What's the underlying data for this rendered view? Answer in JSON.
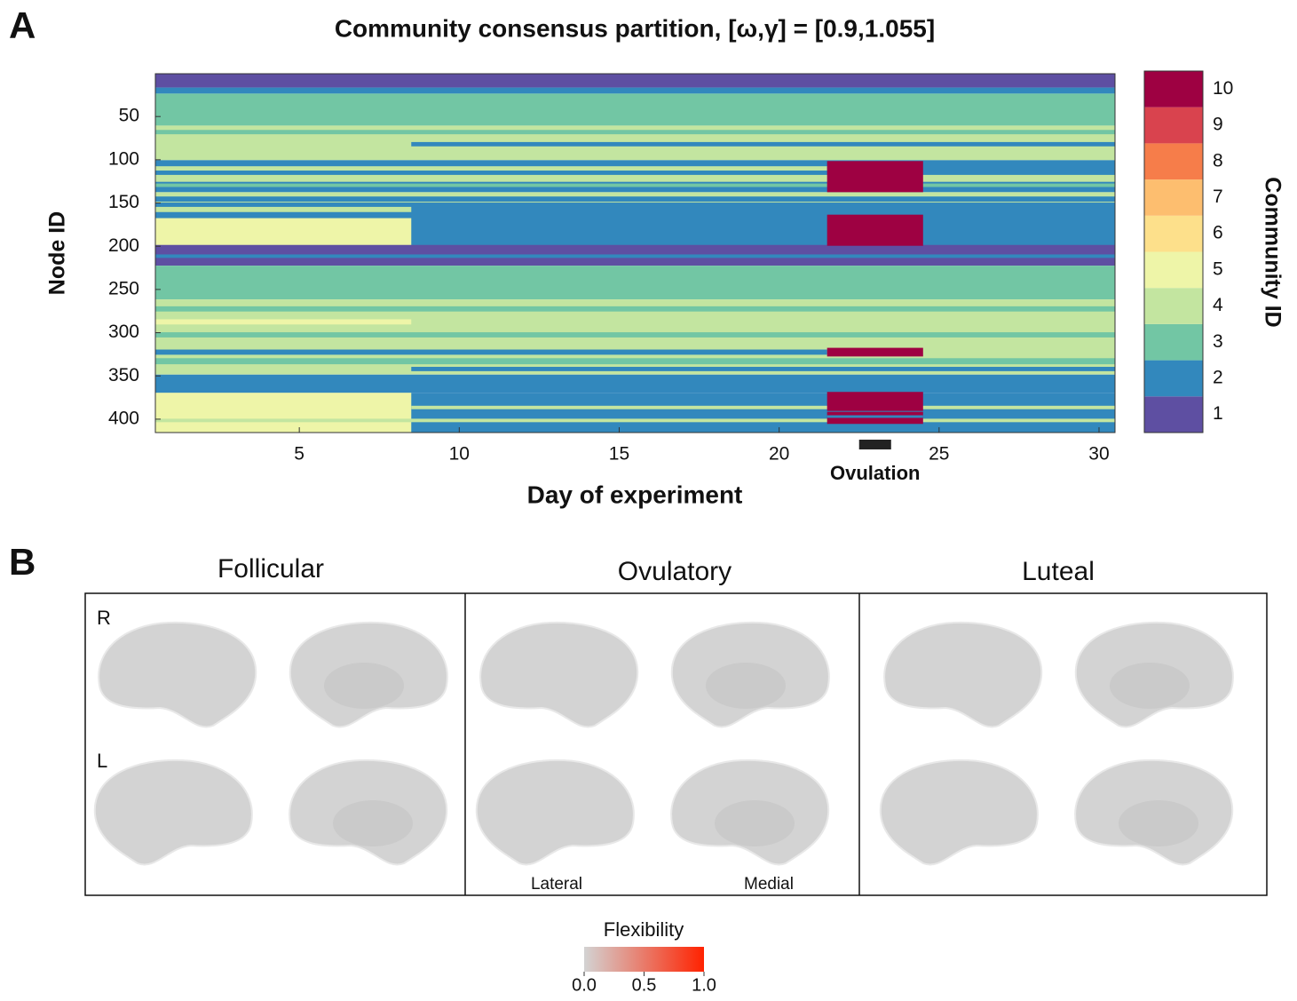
{
  "chart_data": {
    "type": "heatmap",
    "panel_label": "A",
    "title": "Community consensus partition, [ω,γ] = [0.9,1.055]",
    "x_label": "Day of experiment",
    "y_label": "Node ID",
    "xlim": [
      0.5,
      30.5
    ],
    "ylim": [
      0.5,
      415.5
    ],
    "y_reversed": true,
    "xticks": [
      5,
      10,
      15,
      20,
      25,
      30
    ],
    "yticks": [
      50,
      100,
      150,
      200,
      250,
      300,
      350,
      400
    ],
    "colorbar": {
      "title": "Community ID",
      "categories": [
        1,
        2,
        3,
        4,
        5,
        6,
        7,
        8,
        9,
        10
      ],
      "colors": [
        "#5e4fa2",
        "#3288bd",
        "#72c6a4",
        "#c3e5a0",
        "#eef5a8",
        "#fde08b",
        "#fdbe6f",
        "#f67d4a",
        "#d9434e",
        "#9e0142"
      ]
    },
    "cells": [
      {
        "nodes": [
          1,
          16
        ],
        "days": [
          1,
          30
        ],
        "community": 1
      },
      {
        "nodes": [
          17,
          23
        ],
        "days": [
          1,
          30
        ],
        "community": 2
      },
      {
        "nodes": [
          24,
          60
        ],
        "days": [
          1,
          30
        ],
        "community": 3
      },
      {
        "nodes": [
          61,
          100
        ],
        "days": [
          1,
          30
        ],
        "community": 4
      },
      {
        "nodes": [
          66,
          70
        ],
        "days": [
          1,
          30
        ],
        "community": 3
      },
      {
        "nodes": [
          80,
          84
        ],
        "days": [
          9,
          30
        ],
        "community": 2
      },
      {
        "nodes": [
          101,
          137
        ],
        "days": [
          1,
          30
        ],
        "community": 2
      },
      {
        "nodes": [
          108,
          112
        ],
        "days": [
          1,
          21
        ],
        "community": 4
      },
      {
        "nodes": [
          118,
          125
        ],
        "days": [
          1,
          30
        ],
        "community": 4
      },
      {
        "nodes": [
          128,
          131
        ],
        "days": [
          1,
          30
        ],
        "community": 3
      },
      {
        "nodes": [
          138,
          163
        ],
        "days": [
          1,
          30
        ],
        "community": 4
      },
      {
        "nodes": [
          143,
          148
        ],
        "days": [
          1,
          30
        ],
        "community": 2
      },
      {
        "nodes": [
          150,
          199
        ],
        "days": [
          1,
          30
        ],
        "community": 2
      },
      {
        "nodes": [
          155,
          160
        ],
        "days": [
          1,
          8
        ],
        "community": 4
      },
      {
        "nodes": [
          168,
          199
        ],
        "days": [
          1,
          8
        ],
        "community": 5
      },
      {
        "nodes": [
          199,
          222
        ],
        "days": [
          1,
          30
        ],
        "community": 1
      },
      {
        "nodes": [
          210,
          213
        ],
        "days": [
          1,
          30
        ],
        "community": 2
      },
      {
        "nodes": [
          223,
          261
        ],
        "days": [
          1,
          30
        ],
        "community": 3
      },
      {
        "nodes": [
          262,
          348
        ],
        "days": [
          1,
          30
        ],
        "community": 4
      },
      {
        "nodes": [
          270,
          275
        ],
        "days": [
          1,
          30
        ],
        "community": 3
      },
      {
        "nodes": [
          285,
          290
        ],
        "days": [
          1,
          8
        ],
        "community": 5
      },
      {
        "nodes": [
          300,
          305
        ],
        "days": [
          1,
          30
        ],
        "community": 3
      },
      {
        "nodes": [
          320,
          325
        ],
        "days": [
          1,
          21
        ],
        "community": 2
      },
      {
        "nodes": [
          330,
          336
        ],
        "days": [
          1,
          30
        ],
        "community": 3
      },
      {
        "nodes": [
          340,
          344
        ],
        "days": [
          9,
          30
        ],
        "community": 2
      },
      {
        "nodes": [
          349,
          369
        ],
        "days": [
          1,
          30
        ],
        "community": 2
      },
      {
        "nodes": [
          370,
          415
        ],
        "days": [
          1,
          30
        ],
        "community": 2
      },
      {
        "nodes": [
          370,
          415
        ],
        "days": [
          1,
          8
        ],
        "community": 5
      },
      {
        "nodes": [
          385,
          388
        ],
        "days": [
          9,
          30
        ],
        "community": 4
      },
      {
        "nodes": [
          400,
          403
        ],
        "days": [
          1,
          30
        ],
        "community": 4
      },
      {
        "nodes": [
          102,
          137
        ],
        "days": [
          22,
          24
        ],
        "community": 10
      },
      {
        "nodes": [
          164,
          199
        ],
        "days": [
          22,
          24
        ],
        "community": 10
      },
      {
        "nodes": [
          318,
          327
        ],
        "days": [
          22,
          24
        ],
        "community": 10
      },
      {
        "nodes": [
          369,
          390
        ],
        "days": [
          22,
          24
        ],
        "community": 10
      },
      {
        "nodes": [
          392,
          405
        ],
        "days": [
          22,
          24
        ],
        "community": 10
      },
      {
        "nodes": [
          396,
          398
        ],
        "days": [
          22,
          24
        ],
        "community": 2
      }
    ],
    "annotation": {
      "text": "Ovulation",
      "days": [
        22.5,
        23.5
      ]
    }
  },
  "panel_b": {
    "label": "B",
    "phases": [
      "Follicular",
      "Ovulatory",
      "Luteal"
    ],
    "hemispheres": [
      "R",
      "L"
    ],
    "views": [
      "Lateral",
      "Medial"
    ],
    "colorbar": {
      "title": "Flexibility",
      "lim": [
        0,
        1
      ],
      "ticks": [
        {
          "value": 0,
          "label": "0.0"
        },
        {
          "value": 0.5,
          "label": "0.5"
        },
        {
          "value": 1,
          "label": "1.0"
        }
      ],
      "colors": [
        "#d3d3d3",
        "#ff2200"
      ]
    }
  }
}
